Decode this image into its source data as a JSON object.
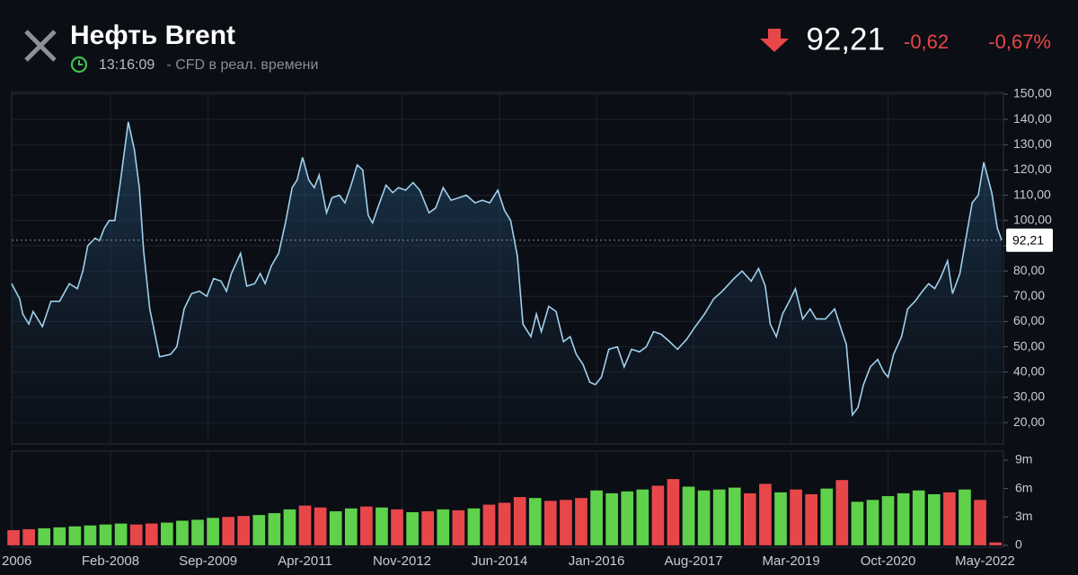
{
  "header": {
    "title": "Нефть Brent",
    "time": "13:16:09",
    "subtitle": " - CFD в реал. времени",
    "price": "92,21",
    "change": "-0,62",
    "change_pct": "-0,67%"
  },
  "chart_data": {
    "type": "line",
    "color": "#9fd0ec",
    "grid": true,
    "last_label": "92,21",
    "last_value": 92.21,
    "xlim": [
      2006.47,
      2022.63
    ],
    "xticks": [
      {
        "value": 2006.47,
        "label": "2006"
      },
      {
        "value": 2008.08,
        "label": "Feb-2008"
      },
      {
        "value": 2009.67,
        "label": "Sep-2009"
      },
      {
        "value": 2011.25,
        "label": "Apr-2011"
      },
      {
        "value": 2012.83,
        "label": "Nov-2012"
      },
      {
        "value": 2014.42,
        "label": "Jun-2014"
      },
      {
        "value": 2016.0,
        "label": "Jan-2016"
      },
      {
        "value": 2017.58,
        "label": "Aug-2017"
      },
      {
        "value": 2019.17,
        "label": "Mar-2019"
      },
      {
        "value": 2020.75,
        "label": "Oct-2020"
      },
      {
        "value": 2022.33,
        "label": "May-2022"
      }
    ],
    "ylim": [
      11.5,
      150.7
    ],
    "yticks": [
      {
        "value": 20,
        "label": "20,00"
      },
      {
        "value": 30,
        "label": "30,00"
      },
      {
        "value": 40,
        "label": "40,00"
      },
      {
        "value": 50,
        "label": "50,00"
      },
      {
        "value": 60,
        "label": "60,00"
      },
      {
        "value": 70,
        "label": "70,00"
      },
      {
        "value": 80,
        "label": "80,00"
      },
      {
        "value": 90,
        "label": "90,00"
      },
      {
        "value": 100,
        "label": "100,00"
      },
      {
        "value": 110,
        "label": "110,00"
      },
      {
        "value": 120,
        "label": "120,00"
      },
      {
        "value": 130,
        "label": "130,00"
      },
      {
        "value": 140,
        "label": "140,00"
      },
      {
        "value": 150,
        "label": "150,00"
      }
    ],
    "x": [
      2006.47,
      2006.6,
      2006.65,
      2006.75,
      2006.82,
      2006.97,
      2007.11,
      2007.25,
      2007.41,
      2007.54,
      2007.63,
      2007.71,
      2007.83,
      2007.9,
      2007.98,
      2008.06,
      2008.15,
      2008.24,
      2008.37,
      2008.47,
      2008.55,
      2008.62,
      2008.72,
      2008.88,
      2009.06,
      2009.16,
      2009.28,
      2009.4,
      2009.53,
      2009.65,
      2009.76,
      2009.88,
      2009.97,
      2010.05,
      2010.2,
      2010.3,
      2010.43,
      2010.52,
      2010.6,
      2010.7,
      2010.82,
      2010.93,
      2011.04,
      2011.12,
      2011.21,
      2011.31,
      2011.4,
      2011.48,
      2011.6,
      2011.69,
      2011.81,
      2011.9,
      2012.0,
      2012.1,
      2012.19,
      2012.28,
      2012.35,
      2012.45,
      2012.57,
      2012.68,
      2012.77,
      2012.89,
      2013.01,
      2013.12,
      2013.27,
      2013.38,
      2013.5,
      2013.63,
      2013.76,
      2013.88,
      2014.02,
      2014.14,
      2014.26,
      2014.39,
      2014.5,
      2014.6,
      2014.71,
      2014.8,
      2014.93,
      2015.02,
      2015.1,
      2015.22,
      2015.34,
      2015.46,
      2015.57,
      2015.67,
      2015.78,
      2015.89,
      2015.98,
      2016.08,
      2016.2,
      2016.34,
      2016.45,
      2016.57,
      2016.7,
      2016.81,
      2016.93,
      2017.05,
      2017.19,
      2017.32,
      2017.47,
      2017.61,
      2017.76,
      2017.91,
      2018.05,
      2018.24,
      2018.37,
      2018.52,
      2018.64,
      2018.75,
      2018.83,
      2018.93,
      2019.03,
      2019.14,
      2019.24,
      2019.36,
      2019.48,
      2019.58,
      2019.73,
      2019.88,
      2020.0,
      2020.07,
      2020.17,
      2020.26,
      2020.35,
      2020.46,
      2020.58,
      2020.68,
      2020.75,
      2020.84,
      2020.97,
      2021.07,
      2021.19,
      2021.31,
      2021.41,
      2021.51,
      2021.6,
      2021.72,
      2021.8,
      2021.92,
      2022.02,
      2022.12,
      2022.22,
      2022.31,
      2022.44,
      2022.53,
      2022.6
    ],
    "values": [
      75,
      69,
      63,
      59,
      64,
      58,
      68,
      68,
      75,
      73,
      80,
      90,
      93,
      92,
      97,
      100,
      100,
      115,
      139,
      128,
      113,
      88,
      65,
      46,
      47,
      50,
      65,
      71,
      72,
      70,
      77,
      76,
      72,
      79,
      87,
      74,
      75,
      79,
      75,
      82,
      87,
      99,
      113,
      116,
      125,
      116,
      113,
      118,
      103,
      109,
      110,
      107,
      114,
      122,
      120,
      102,
      99,
      106,
      114,
      111,
      113,
      112,
      115,
      112,
      103,
      105,
      113,
      108,
      109,
      110,
      107,
      108,
      107,
      112,
      104,
      100,
      86,
      59,
      54,
      63,
      56,
      66,
      64,
      52,
      54,
      47,
      43,
      36,
      35,
      38,
      49,
      50,
      42,
      49,
      48,
      50,
      56,
      55,
      52,
      49,
      53,
      58,
      63,
      69,
      72,
      77,
      80,
      76,
      81,
      74,
      59,
      54,
      63,
      68,
      73,
      61,
      65,
      61,
      61,
      65,
      56,
      51,
      23,
      26,
      35,
      42,
      45,
      40,
      38,
      47,
      54,
      65,
      68,
      72,
      75,
      73,
      77,
      84,
      71,
      79,
      93,
      107,
      110,
      123,
      111,
      97,
      92.21
    ],
    "volume": {
      "type": "bar",
      "up_color": "#5fd14b",
      "down_color": "#e8474a",
      "ylim": [
        -200000,
        9950000
      ],
      "yticks": [
        {
          "value": 0,
          "label": "0"
        },
        {
          "value": 3000000,
          "label": "3m"
        },
        {
          "value": 6000000,
          "label": "6m"
        },
        {
          "value": 9000000,
          "label": "9m"
        }
      ],
      "x": [
        2006.5,
        2006.75,
        2007,
        2007.25,
        2007.5,
        2007.75,
        2008,
        2008.25,
        2008.5,
        2008.75,
        2009,
        2009.25,
        2009.5,
        2009.75,
        2010,
        2010.25,
        2010.5,
        2010.75,
        2011,
        2011.25,
        2011.5,
        2011.75,
        2012,
        2012.25,
        2012.5,
        2012.75,
        2013,
        2013.25,
        2013.5,
        2013.75,
        2014,
        2014.25,
        2014.5,
        2014.75,
        2015,
        2015.25,
        2015.5,
        2015.75,
        2016,
        2016.25,
        2016.5,
        2016.75,
        2017,
        2017.25,
        2017.5,
        2017.75,
        2018,
        2018.25,
        2018.5,
        2018.75,
        2019,
        2019.25,
        2019.5,
        2019.75,
        2020,
        2020.25,
        2020.5,
        2020.75,
        2021,
        2021.25,
        2021.5,
        2021.75,
        2022,
        2022.25,
        2022.5
      ],
      "values": [
        1600000,
        1700000,
        1800000,
        1900000,
        2000000,
        2100000,
        2200000,
        2300000,
        2200000,
        2300000,
        2400000,
        2600000,
        2700000,
        2900000,
        3000000,
        3100000,
        3200000,
        3400000,
        3800000,
        4200000,
        4000000,
        3600000,
        3900000,
        4100000,
        4000000,
        3800000,
        3500000,
        3600000,
        3800000,
        3700000,
        3900000,
        4300000,
        4500000,
        5100000,
        5000000,
        4700000,
        4800000,
        5000000,
        5800000,
        5500000,
        5700000,
        5900000,
        6300000,
        7000000,
        6200000,
        5800000,
        5900000,
        6100000,
        5500000,
        6500000,
        5600000,
        5900000,
        5400000,
        6000000,
        6900000,
        4600000,
        4800000,
        5200000,
        5500000,
        5800000,
        5400000,
        5600000,
        5900000,
        4800000,
        300000
      ],
      "rising": [
        false,
        false,
        true,
        true,
        true,
        true,
        true,
        true,
        false,
        false,
        true,
        true,
        true,
        true,
        false,
        false,
        true,
        true,
        true,
        false,
        false,
        true,
        true,
        false,
        true,
        false,
        true,
        false,
        true,
        false,
        true,
        false,
        false,
        false,
        true,
        false,
        false,
        false,
        true,
        true,
        true,
        true,
        false,
        false,
        true,
        true,
        true,
        true,
        false,
        false,
        true,
        false,
        false,
        true,
        false,
        true,
        true,
        true,
        true,
        true,
        true,
        false,
        true,
        false,
        false
      ]
    }
  }
}
